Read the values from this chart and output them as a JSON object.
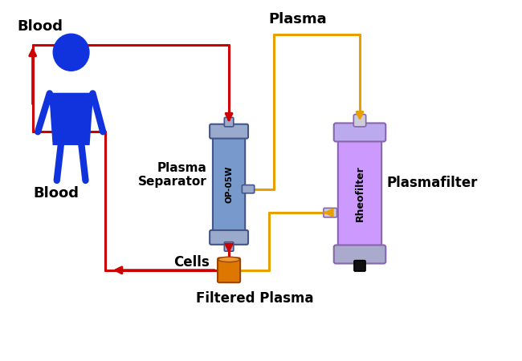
{
  "bg_color": "#ffffff",
  "figure_size": [
    6.5,
    4.5
  ],
  "dpi": 100,
  "colors": {
    "red": "#CC0000",
    "yellow": "#E8A000",
    "blue_figure": "#1133DD",
    "sep_body": "#7799CC",
    "sep_cap": "#99AACC",
    "sep_edge": "#445588",
    "filter_body": "#CC99FF",
    "filter_cap": "#BBAAEE",
    "filter_edge": "#8866AA",
    "filter_cap2": "#AAAACC",
    "orange": "#DD7700",
    "orange_edge": "#994400",
    "black": "#111111",
    "white": "#ffffff"
  },
  "labels": {
    "blood_top": "Blood",
    "plasma_top": "Plasma",
    "plasma_separator": "Plasma\nSeparator",
    "op05w": "OP-05W",
    "cells": "Cells",
    "filtered_plasma": "Filtered Plasma",
    "blood_bottom": "Blood",
    "rheofilter": "Rheofilter",
    "plasmafilter": "Plasmafilter"
  }
}
